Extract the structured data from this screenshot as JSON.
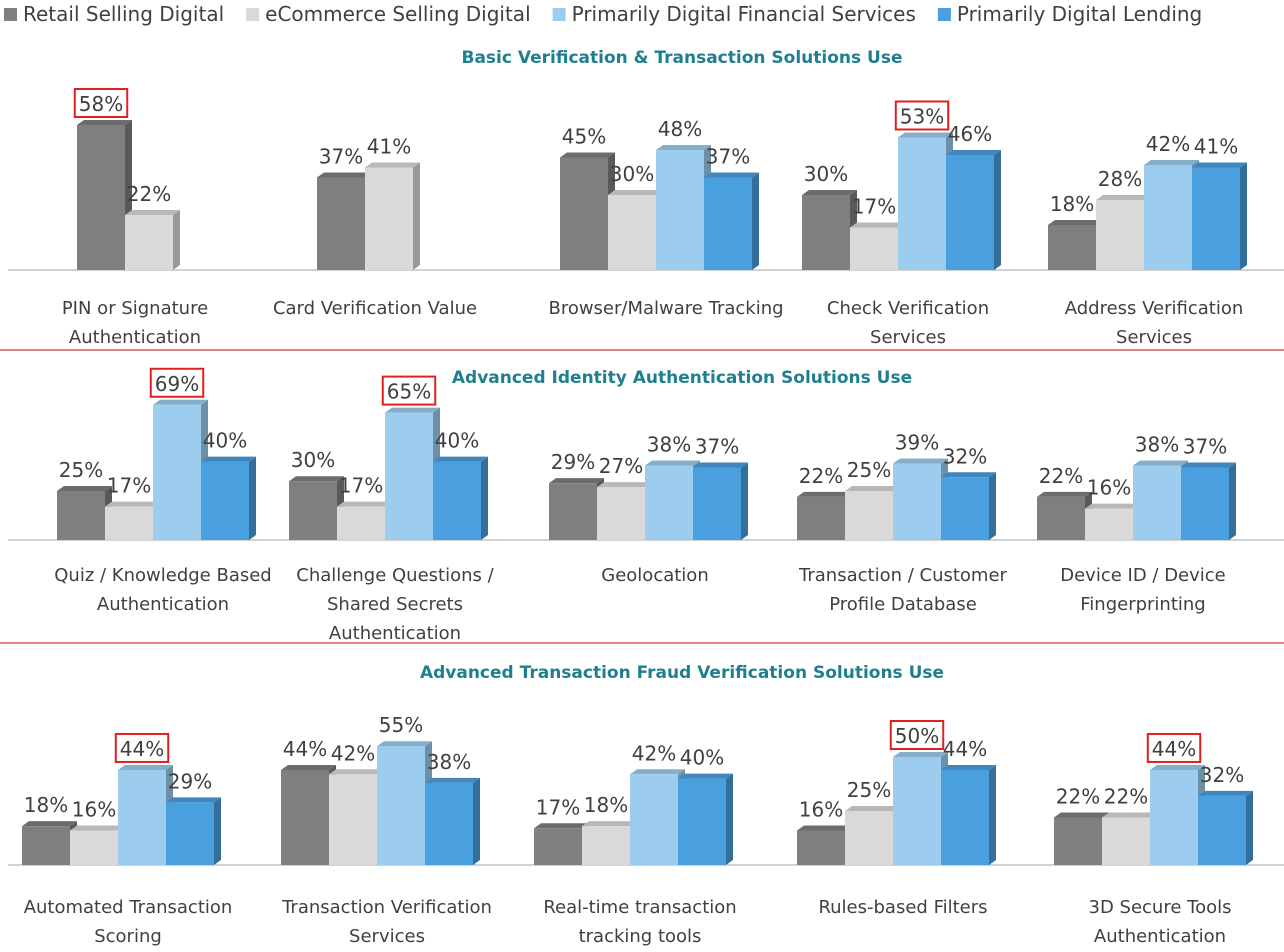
{
  "chart_data": [
    {
      "type": "bar",
      "title": "Basic Verification & Transaction Solutions Use",
      "categories": [
        "PIN or Signature Authentication",
        "Card Verification Value",
        "Browser/Malware Tracking",
        "Check Verification Services",
        "Address Verification Services"
      ],
      "series": [
        {
          "name": "Retail Selling Digital",
          "color": "#7f7f7f",
          "values": [
            58,
            37,
            45,
            30,
            18
          ],
          "value_labels": [
            "58%",
            "37%",
            "45%",
            "30%",
            "18%"
          ]
        },
        {
          "name": "eCommerce Selling Digital",
          "color": "#d9d9d9",
          "values": [
            22,
            41,
            30,
            17,
            28
          ],
          "value_labels": [
            "22%",
            "41%",
            "30%",
            "17%",
            "28%"
          ]
        },
        {
          "name": "Primarily Digital Financial Services",
          "color": "#9dcdee",
          "values": [
            null,
            null,
            48,
            53,
            42
          ],
          "value_labels": [
            null,
            null,
            "48%",
            "53%",
            "42%"
          ]
        },
        {
          "name": "Primarily Digital Lending",
          "color": "#4a9fdf",
          "values": [
            null,
            null,
            37,
            46,
            41
          ],
          "value_labels": [
            null,
            null,
            "37%",
            "46%",
            "41%"
          ]
        }
      ],
      "highlighted": [
        {
          "series": 0,
          "index": 0
        },
        {
          "series": 2,
          "index": 3
        }
      ],
      "highlight_color": "#e02020"
    },
    {
      "type": "bar",
      "title": "Advanced Identity Authentication Solutions Use",
      "categories": [
        "Quiz / Knowledge Based Authentication",
        "Challenge Questions / Shared Secrets Authentication",
        "Geolocation",
        "Transaction / Customer Profile Database",
        "Device ID / Device Fingerprinting"
      ],
      "series": [
        {
          "name": "Retail Selling Digital",
          "color": "#7f7f7f",
          "values": [
            25,
            30,
            29,
            22,
            22
          ],
          "value_labels": [
            "25%",
            "30%",
            "29%",
            "22%",
            "22%"
          ]
        },
        {
          "name": "eCommerce Selling Digital",
          "color": "#d9d9d9",
          "values": [
            17,
            17,
            27,
            25,
            16
          ],
          "value_labels": [
            "17%",
            "17%",
            "27%",
            "25%",
            "16%"
          ]
        },
        {
          "name": "Primarily Digital Financial Services",
          "color": "#9dcdee",
          "values": [
            69,
            65,
            38,
            39,
            38
          ],
          "value_labels": [
            "69%",
            "65%",
            "38%",
            "39%",
            "38%"
          ]
        },
        {
          "name": "Primarily Digital Lending",
          "color": "#4a9fdf",
          "values": [
            40,
            40,
            37,
            32,
            37
          ],
          "value_labels": [
            "40%",
            "40%",
            "37%",
            "32%",
            "37%"
          ]
        }
      ],
      "highlighted": [
        {
          "series": 2,
          "index": 0
        },
        {
          "series": 2,
          "index": 1
        }
      ],
      "highlight_color": "#e02020"
    },
    {
      "type": "bar",
      "title": "Advanced Transaction Fraud Verification Solutions Use",
      "categories": [
        "Automated Transaction Scoring",
        "Transaction Verification Services",
        "Real-time transaction tracking tools",
        "Rules-based Filters",
        "3D Secure Tools Authentication"
      ],
      "series": [
        {
          "name": "Retail Selling Digital",
          "color": "#7f7f7f",
          "values": [
            18,
            44,
            17,
            16,
            22
          ],
          "value_labels": [
            "18%",
            "44%",
            "17%",
            "16%",
            "22%"
          ]
        },
        {
          "name": "eCommerce Selling Digital",
          "color": "#d9d9d9",
          "values": [
            16,
            42,
            18,
            25,
            22
          ],
          "value_labels": [
            "16%",
            "42%",
            "18%",
            "25%",
            "22%"
          ]
        },
        {
          "name": "Primarily Digital Financial Services",
          "color": "#9dcdee",
          "values": [
            44,
            55,
            42,
            50,
            44
          ],
          "value_labels": [
            "44%",
            "55%",
            "42%",
            "50%",
            "44%"
          ]
        },
        {
          "name": "Primarily Digital Lending",
          "color": "#4a9fdf",
          "values": [
            29,
            38,
            40,
            44,
            32
          ],
          "value_labels": [
            "29%",
            "38%",
            "40%",
            "44%",
            "32%"
          ]
        }
      ],
      "highlighted": [
        {
          "series": 2,
          "index": 0
        },
        {
          "series": 2,
          "index": 3
        },
        {
          "series": 2,
          "index": 4
        }
      ],
      "highlight_color": "#e02020"
    }
  ]
}
